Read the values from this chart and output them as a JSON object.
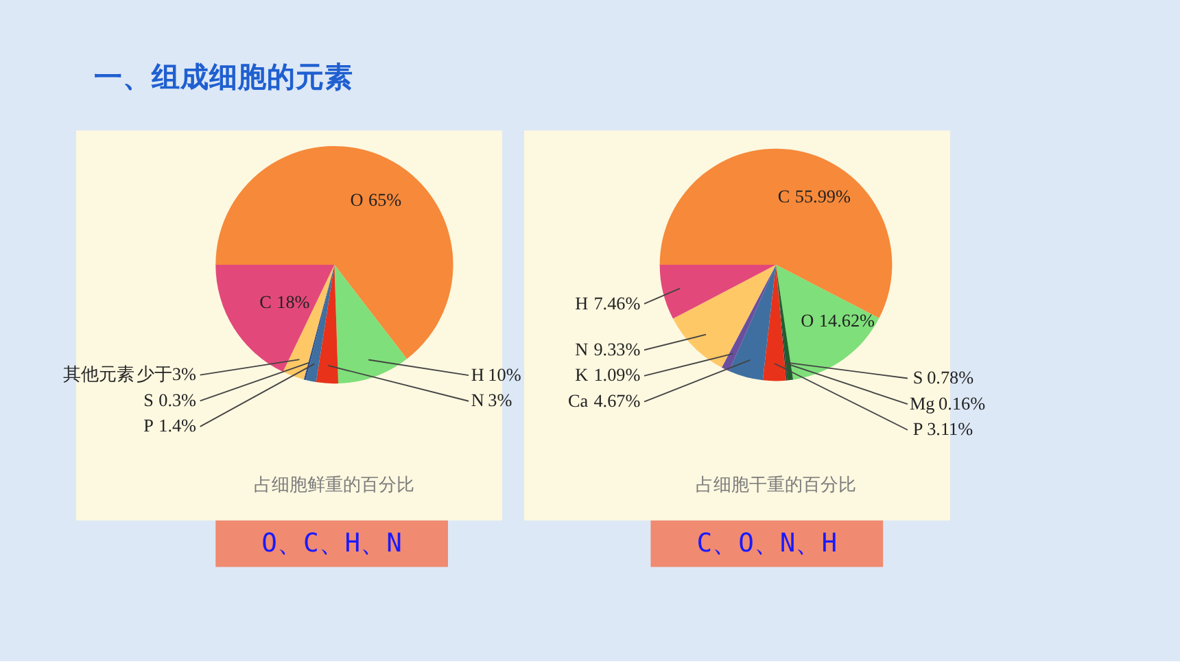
{
  "chart_data": [
    {
      "type": "pie",
      "title": "占细胞鲜重的百分比",
      "categories": [
        "O",
        "H",
        "N",
        "P",
        "S",
        "其他元素",
        "C"
      ],
      "values": [
        65,
        10,
        3,
        1.4,
        0.3,
        3,
        18
      ],
      "value_labels": [
        "65%",
        "10%",
        "3%",
        "1.4%",
        "0.3%",
        "少于3%",
        "18%"
      ],
      "colors": [
        "#f6893a",
        "#7fdf7a",
        "#e8321a",
        "#3f6fa0",
        "#2f4f8f",
        "#ffc866",
        "#e2497a"
      ],
      "annotations": [
        "一、组成细胞的元素",
        "O、C、H、N"
      ]
    },
    {
      "type": "pie",
      "title": "占细胞干重的百分比",
      "categories": [
        "C",
        "O",
        "S",
        "Mg",
        "P",
        "Ca",
        "K",
        "N",
        "H"
      ],
      "values": [
        55.99,
        14.62,
        0.78,
        0.16,
        3.11,
        4.67,
        1.09,
        9.33,
        7.46
      ],
      "value_labels": [
        "55.99%",
        "14.62%",
        "0.78%",
        "0.16%",
        "3.11%",
        "4.67%",
        "1.09%",
        "9.33%",
        "7.46%"
      ],
      "colors": [
        "#f6893a",
        "#7fdf7a",
        "#1f5f2f",
        "#333333",
        "#e8321a",
        "#3f6fa0",
        "#6a4fa0",
        "#ffc866",
        "#e2497a"
      ],
      "annotations": [
        "C、O、N、H"
      ]
    }
  ]
}
